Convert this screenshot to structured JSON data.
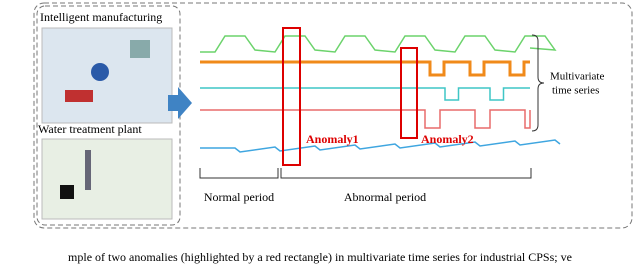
{
  "left_panel": {
    "top_label": "Intelligent manufacturing",
    "bottom_label": "Water treatment plant"
  },
  "series_label": [
    "Multivariate",
    "time series"
  ],
  "anomalies": [
    "Anomaly1",
    "Anomaly2"
  ],
  "periods": {
    "normal": "Normal period",
    "abnormal": "Abnormal period"
  },
  "caption": "mple of two anomalies (highlighted by a red rectangle) in multivariate time series for industrial CPSs; ve"
}
